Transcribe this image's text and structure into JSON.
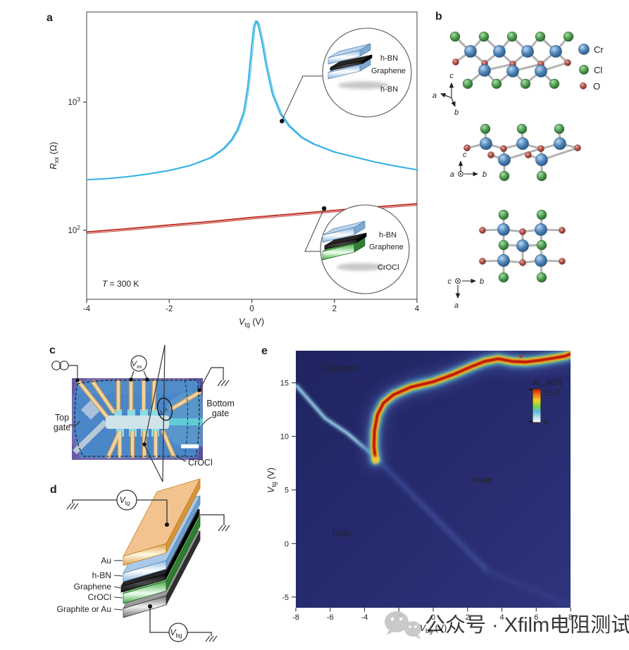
{
  "panel_a": {
    "label": "a",
    "xlabel": {
      "pre": "V",
      "sub": "tg",
      "post": " (V)"
    },
    "ylabel": {
      "pre": "R",
      "sub": "xx",
      "post": " (Ω)"
    },
    "xticks": [
      "-4",
      "-2",
      "0",
      "2",
      "4"
    ],
    "yticks": [
      {
        "base": "10",
        "exp": "3"
      },
      {
        "base": "10",
        "exp": "2"
      }
    ],
    "annotation": {
      "pre": "T",
      "post": " = 300 K"
    },
    "inset_top": {
      "labels": [
        "h-BN",
        "Graphene",
        "h-BN"
      ]
    },
    "inset_bottom": {
      "labels": [
        "h-BN",
        "Graphene",
        "CrOCl"
      ]
    }
  },
  "panel_b": {
    "label": "b",
    "legend": [
      {
        "label": "Cr",
        "color": "#4d83b8"
      },
      {
        "label": "Cl",
        "color": "#4f9d50"
      },
      {
        "label": "O",
        "color": "#b5544a"
      }
    ],
    "axes1": {
      "up": "c",
      "left": "a",
      "down": "b"
    },
    "axes2": {
      "up": "c",
      "out": "a",
      "right": "b"
    },
    "axes3": {
      "out": "c",
      "right": "b",
      "down": "a"
    }
  },
  "panel_c": {
    "label": "c",
    "top_gate": [
      "Top",
      "gate"
    ],
    "bottom_gate": [
      "Bottom",
      "gate"
    ],
    "crocl": "CrOCl",
    "vxx": {
      "pre": "V",
      "sub": "xx"
    },
    "vxy": {
      "pre": "V",
      "sub": "xy"
    }
  },
  "panel_d": {
    "label": "d",
    "layers": [
      "Au",
      "h-BN",
      "Graphene",
      "CrOCl",
      "Graphite or Au"
    ],
    "vtg": {
      "pre": "V",
      "sub": "tg"
    },
    "vbg": {
      "pre": "V",
      "sub": "bg"
    }
  },
  "panel_e": {
    "label": "e",
    "xlabel": {
      "pre": "V",
      "sub": "bg",
      "post": " (V)"
    },
    "ylabel": {
      "pre": "V",
      "sub": "tg",
      "post": " (V)"
    },
    "xticks": [
      "-8",
      "-6",
      "-4",
      "-2",
      "0",
      "2",
      "4",
      "6",
      "8"
    ],
    "yticks": [
      "15",
      "10",
      "5",
      "0",
      "-5"
    ],
    "regions": {
      "electron": "Electron",
      "hole_right": "Hole",
      "hole_left": "Hole"
    },
    "colorbar": {
      "title": {
        "pre": "R",
        "sub": "xx",
        "post": "(kΩ)"
      },
      "max": "15.0",
      "min": "0"
    }
  },
  "watermark": {
    "text": "公众号 · Xfilm电阻测试"
  },
  "chart_data": [
    {
      "id": "panel_a",
      "type": "line",
      "title": "",
      "xlabel": "V_tg (V)",
      "ylabel": "R_xx (Ohm)",
      "xscale": "linear",
      "yscale": "log",
      "xlim": [
        -4,
        4
      ],
      "ylim": [
        70,
        5000
      ],
      "annotation": "T = 300 K",
      "series": [
        {
          "name": "h-BN/Graphene/h-BN",
          "color": "#35b0e5",
          "x": [
            -4,
            -3.5,
            -3,
            -2.5,
            -2,
            -1.5,
            -1,
            -0.7,
            -0.5,
            -0.35,
            -0.2,
            -0.1,
            0,
            0.05,
            0.1,
            0.15,
            0.25,
            0.35,
            0.5,
            0.7,
            0.9,
            1.2,
            1.5,
            2,
            2.5,
            3,
            3.5,
            4
          ],
          "y": [
            248,
            253,
            262,
            275,
            293,
            320,
            368,
            430,
            505,
            610,
            830,
            1300,
            2800,
            3900,
            4300,
            4050,
            2900,
            1900,
            1150,
            800,
            650,
            530,
            470,
            408,
            372,
            340,
            316,
            296
          ]
        },
        {
          "name": "h-BN/Graphene/CrOCl",
          "color": "#c03028",
          "x": [
            -4,
            -3,
            -2,
            -1,
            0,
            1,
            2,
            3,
            4
          ],
          "y": [
            97,
            103,
            110,
            117,
            126,
            134,
            143,
            152,
            161
          ]
        }
      ],
      "markers": [
        {
          "series": 0,
          "x": 0.73,
          "y": 711
        },
        {
          "series": 1,
          "x": 1.75,
          "y": 148
        }
      ]
    },
    {
      "id": "panel_e",
      "type": "heatmap",
      "xlabel": "V_bg (V)",
      "ylabel": "V_tg (V)",
      "xlim": [
        -8,
        8
      ],
      "ylim": [
        -6,
        18
      ],
      "colorbar": {
        "label": "R_xx (kOhm)",
        "min": 0,
        "max": 15
      },
      "ridge": {
        "x": [
          -3.35,
          -3.45,
          -3.42,
          -3.25,
          -2.9,
          -2.3,
          -1.3,
          0,
          1.2,
          2.2,
          3.0,
          3.8,
          4.6,
          5.4,
          6.2,
          7.0,
          7.7,
          8.3
        ],
        "y": [
          7.8,
          9.0,
          10.5,
          12.0,
          13.1,
          13.9,
          14.6,
          15.1,
          15.8,
          16.5,
          17.0,
          17.25,
          17.0,
          16.95,
          17.1,
          17.3,
          17.5,
          17.9
        ]
      },
      "streaks": [
        {
          "x": [
            -8,
            -6.3,
            -5,
            -4.2,
            -3.4
          ],
          "y": [
            14.8,
            11.7,
            10.3,
            9.2,
            8.15
          ]
        },
        {
          "x": [
            -3.4,
            3.2
          ],
          "y": [
            8.1,
            -2.6
          ]
        },
        {
          "x": [
            3.2,
            8
          ],
          "y": [
            -2.6,
            -5.8
          ]
        }
      ],
      "hotspot": {
        "x": -3.35,
        "y": 7.85
      },
      "speck": {
        "x": 5.1,
        "y": 17.45
      },
      "regions": [
        {
          "label": "Electron",
          "x": -5.5,
          "y": 16.2
        },
        {
          "label": "Hole",
          "x": 2.9,
          "y": 6.0
        },
        {
          "label": "Hole",
          "x": -5.3,
          "y": 1.0
        }
      ]
    }
  ]
}
